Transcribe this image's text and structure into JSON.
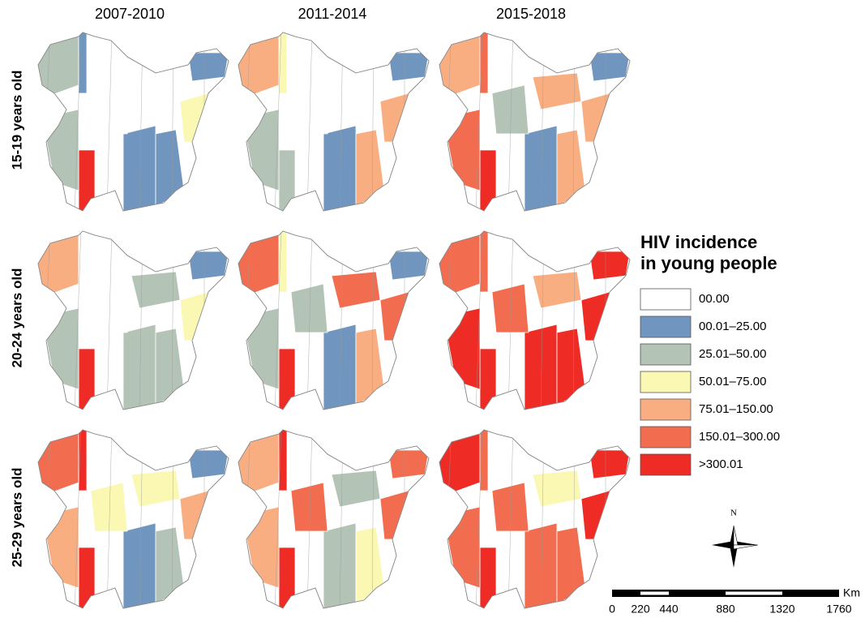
{
  "columns": [
    "2007-2010",
    "2011-2014",
    "2015-2018"
  ],
  "rows": [
    "15-19 years old",
    "20-24 years old",
    "25-29 years old"
  ],
  "legend": {
    "title": [
      "HIV incidence",
      "in young people"
    ],
    "items": [
      {
        "label": "00.00",
        "color": "#ffffff"
      },
      {
        "label": "00.01–25.00",
        "color": "#7096bf"
      },
      {
        "label": "25.01–50.00",
        "color": "#b3c3b6"
      },
      {
        "label": "50.01–75.00",
        "color": "#fbf8b3"
      },
      {
        "label": "75.01–150.00",
        "color": "#f9ae82"
      },
      {
        "label": "150.01–300.00",
        "color": "#f26c4f"
      },
      {
        "label": ">300.01",
        "color": "#ee2b24"
      }
    ]
  },
  "compass": "N",
  "scale": {
    "unit": "Km",
    "ticks": [
      0,
      220,
      440,
      880,
      1320,
      1760
    ]
  }
}
